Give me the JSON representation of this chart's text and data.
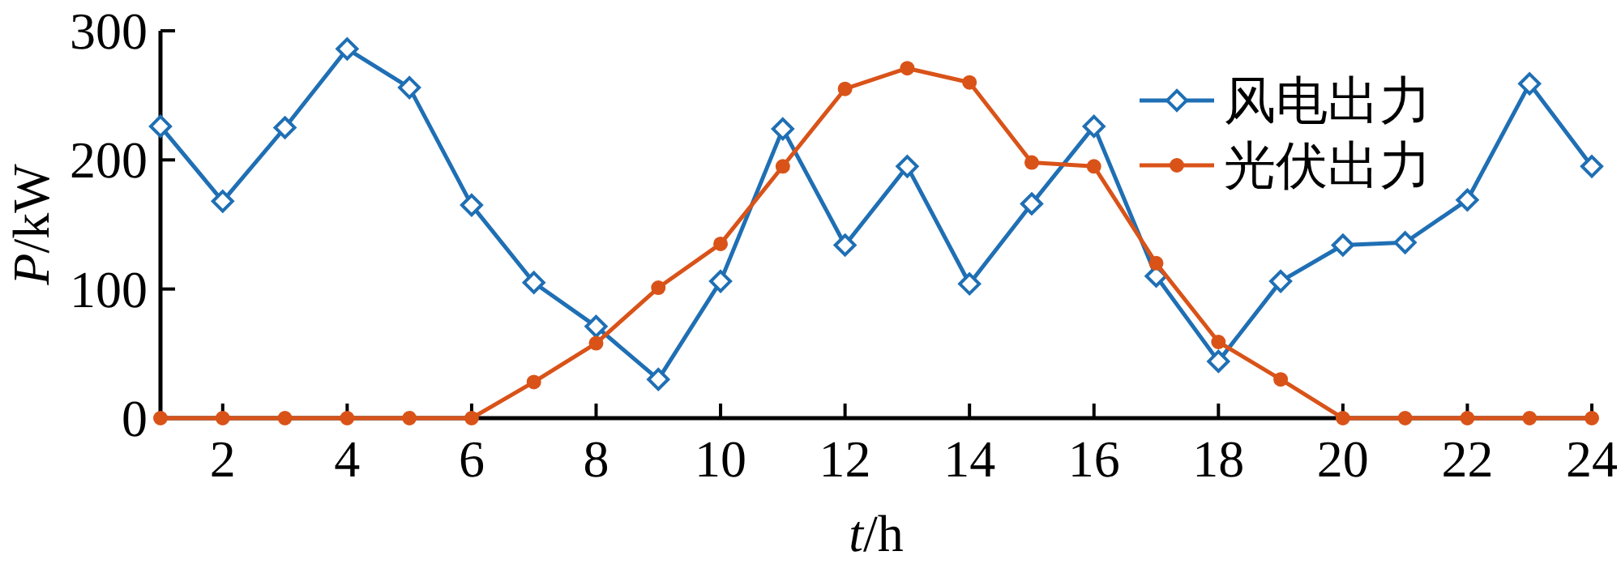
{
  "chart_data": {
    "type": "line",
    "xlabel": "*t*/h",
    "ylabel": "*P*/kW",
    "x": [
      1,
      2,
      3,
      4,
      5,
      6,
      7,
      8,
      9,
      10,
      11,
      12,
      13,
      14,
      15,
      16,
      17,
      18,
      19,
      20,
      21,
      22,
      23,
      24
    ],
    "xlim": [
      1,
      24
    ],
    "xticks": [
      2,
      4,
      6,
      8,
      10,
      12,
      14,
      16,
      18,
      20,
      22,
      24
    ],
    "ylim": [
      0,
      300
    ],
    "yticks": [
      0,
      100,
      200,
      300
    ],
    "grid": false,
    "legend": "top right",
    "line_style": "solid",
    "series": [
      {
        "name": "风电出力",
        "color": "#1f6fb4",
        "marker": "diamond",
        "values": [
          226,
          168,
          225,
          286,
          256,
          165,
          105,
          71,
          30,
          106,
          224,
          134,
          195,
          104,
          166,
          226,
          110,
          44,
          106,
          134,
          136,
          169,
          259,
          195
        ]
      },
      {
        "name": "光伏出力",
        "color": "#d95319",
        "marker": "circle",
        "values": [
          0,
          0,
          0,
          0,
          0,
          0,
          28,
          58,
          101,
          135,
          195,
          255,
          271,
          260,
          198,
          195,
          120,
          59,
          30,
          0,
          0,
          0,
          0,
          0
        ]
      }
    ]
  }
}
